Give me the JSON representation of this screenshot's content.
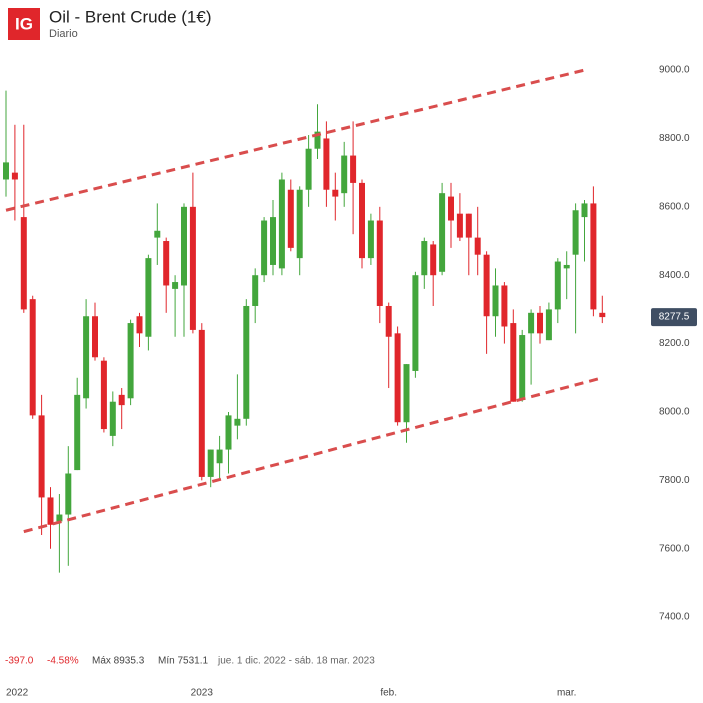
{
  "chart_data": {
    "type": "candlestick",
    "logo": "IG",
    "title": "Oil - Brent Crude (1€)",
    "subtitle": "Diario",
    "stats": {
      "change": "-397.0",
      "change_pct": "-4.58%",
      "max": "Máx 8935.3",
      "min": "Mín 7531.1",
      "range": "jue. 1 dic. 2022 - sáb. 18 mar. 2023"
    },
    "categories": [
      "2022",
      null,
      null,
      null,
      null,
      null,
      null,
      null,
      null,
      null,
      null,
      null,
      null,
      null,
      null,
      null,
      null,
      null,
      null,
      null,
      null,
      null,
      "2023",
      null,
      null,
      null,
      null,
      null,
      null,
      null,
      null,
      null,
      null,
      null,
      null,
      null,
      null,
      null,
      null,
      null,
      null,
      null,
      null,
      "feb.",
      null,
      null,
      null,
      null,
      null,
      null,
      null,
      null,
      null,
      null,
      null,
      null,
      null,
      null,
      null,
      null,
      null,
      null,
      null,
      "mar.",
      null,
      null,
      null,
      null
    ],
    "open": [
      8680,
      8700,
      8570,
      8330,
      7990,
      7750,
      7680,
      7700,
      7830,
      8040,
      8280,
      8150,
      7930,
      8050,
      8040,
      8280,
      8220,
      8510,
      8500,
      8360,
      8370,
      8600,
      8240,
      7810,
      7850,
      7890,
      7960,
      7980,
      8310,
      8400,
      8430,
      8420,
      8650,
      8450,
      8650,
      8770,
      8800,
      8650,
      8640,
      8750,
      8670,
      8450,
      8560,
      8310,
      8230,
      7970,
      8120,
      8400,
      8490,
      8410,
      8630,
      8580,
      8580,
      8510,
      8460,
      8280,
      8370,
      8260,
      8035,
      8230,
      8290,
      8210,
      8300,
      8420,
      8460,
      8570,
      8610,
      8290
    ],
    "high": [
      8940,
      8840,
      8840,
      8340,
      8050,
      7780,
      7760,
      7900,
      8100,
      8330,
      8320,
      8160,
      8060,
      8070,
      8270,
      8290,
      8460,
      8610,
      8510,
      8400,
      8610,
      8700,
      8260,
      7890,
      7930,
      8000,
      8110,
      8330,
      8420,
      8570,
      8620,
      8700,
      8680,
      8660,
      8810,
      8900,
      8850,
      8700,
      8790,
      8850,
      8680,
      8580,
      8600,
      8320,
      8250,
      8140,
      8410,
      8510,
      8500,
      8670,
      8670,
      8640,
      8580,
      8600,
      8470,
      8420,
      8380,
      8300,
      8240,
      8300,
      8310,
      8320,
      8450,
      8470,
      8610,
      8620,
      8660,
      8340
    ],
    "low": [
      8630,
      8560,
      8290,
      7980,
      7640,
      7600,
      7530,
      7550,
      7830,
      8010,
      8150,
      7940,
      7900,
      7950,
      8020,
      8190,
      8180,
      8430,
      8290,
      8220,
      8220,
      8230,
      7800,
      7780,
      7800,
      7820,
      7920,
      7960,
      8260,
      8380,
      8400,
      8400,
      8470,
      8400,
      8600,
      8740,
      8600,
      8560,
      8600,
      8520,
      8420,
      8430,
      8260,
      8070,
      7960,
      7910,
      8100,
      8360,
      8310,
      8400,
      8480,
      8500,
      8400,
      8400,
      8170,
      8220,
      8200,
      8030,
      8030,
      8080,
      8200,
      8210,
      8260,
      8330,
      8230,
      8440,
      8280,
      8260
    ],
    "close": [
      8730,
      8680,
      8300,
      7990,
      7750,
      7670,
      7700,
      7820,
      8050,
      8280,
      8160,
      7950,
      8030,
      8020,
      8260,
      8230,
      8450,
      8530,
      8370,
      8380,
      8600,
      8240,
      7810,
      7890,
      7890,
      7990,
      7980,
      8310,
      8400,
      8560,
      8570,
      8680,
      8480,
      8650,
      8770,
      8820,
      8650,
      8630,
      8750,
      8670,
      8450,
      8560,
      8310,
      8220,
      7970,
      8140,
      8400,
      8500,
      8400,
      8640,
      8560,
      8510,
      8510,
      8460,
      8280,
      8370,
      8250,
      8030,
      8225,
      8290,
      8230,
      8300,
      8440,
      8430,
      8590,
      8610,
      8300,
      8277.5
    ],
    "up_color": "#43a63c",
    "down_color": "#e0262b",
    "trend_lines": [
      {
        "x": [
          0,
          65
        ],
        "values": [
          8590,
          9000
        ],
        "color": "#d94d4d"
      },
      {
        "x": [
          2,
          67
        ],
        "values": [
          7650,
          8100
        ],
        "color": "#d94d4d"
      }
    ],
    "last_price": 8277.5,
    "last_price_color": "#3f4e63",
    "ylim": [
      7333,
      9088
    ],
    "yticks": [
      {
        "value": 7400,
        "label": "7400.0"
      },
      {
        "value": 7600,
        "label": "7600.0"
      },
      {
        "value": 7800,
        "label": "7800.0"
      },
      {
        "value": 8000,
        "label": "8000.0"
      },
      {
        "value": 8200,
        "label": "8200.0"
      },
      {
        "value": 8400,
        "label": "8400.0"
      },
      {
        "value": 8600,
        "label": "8600.0"
      },
      {
        "value": 8800,
        "label": "8800.0"
      },
      {
        "value": 9000,
        "label": "9000.0"
      }
    ]
  }
}
